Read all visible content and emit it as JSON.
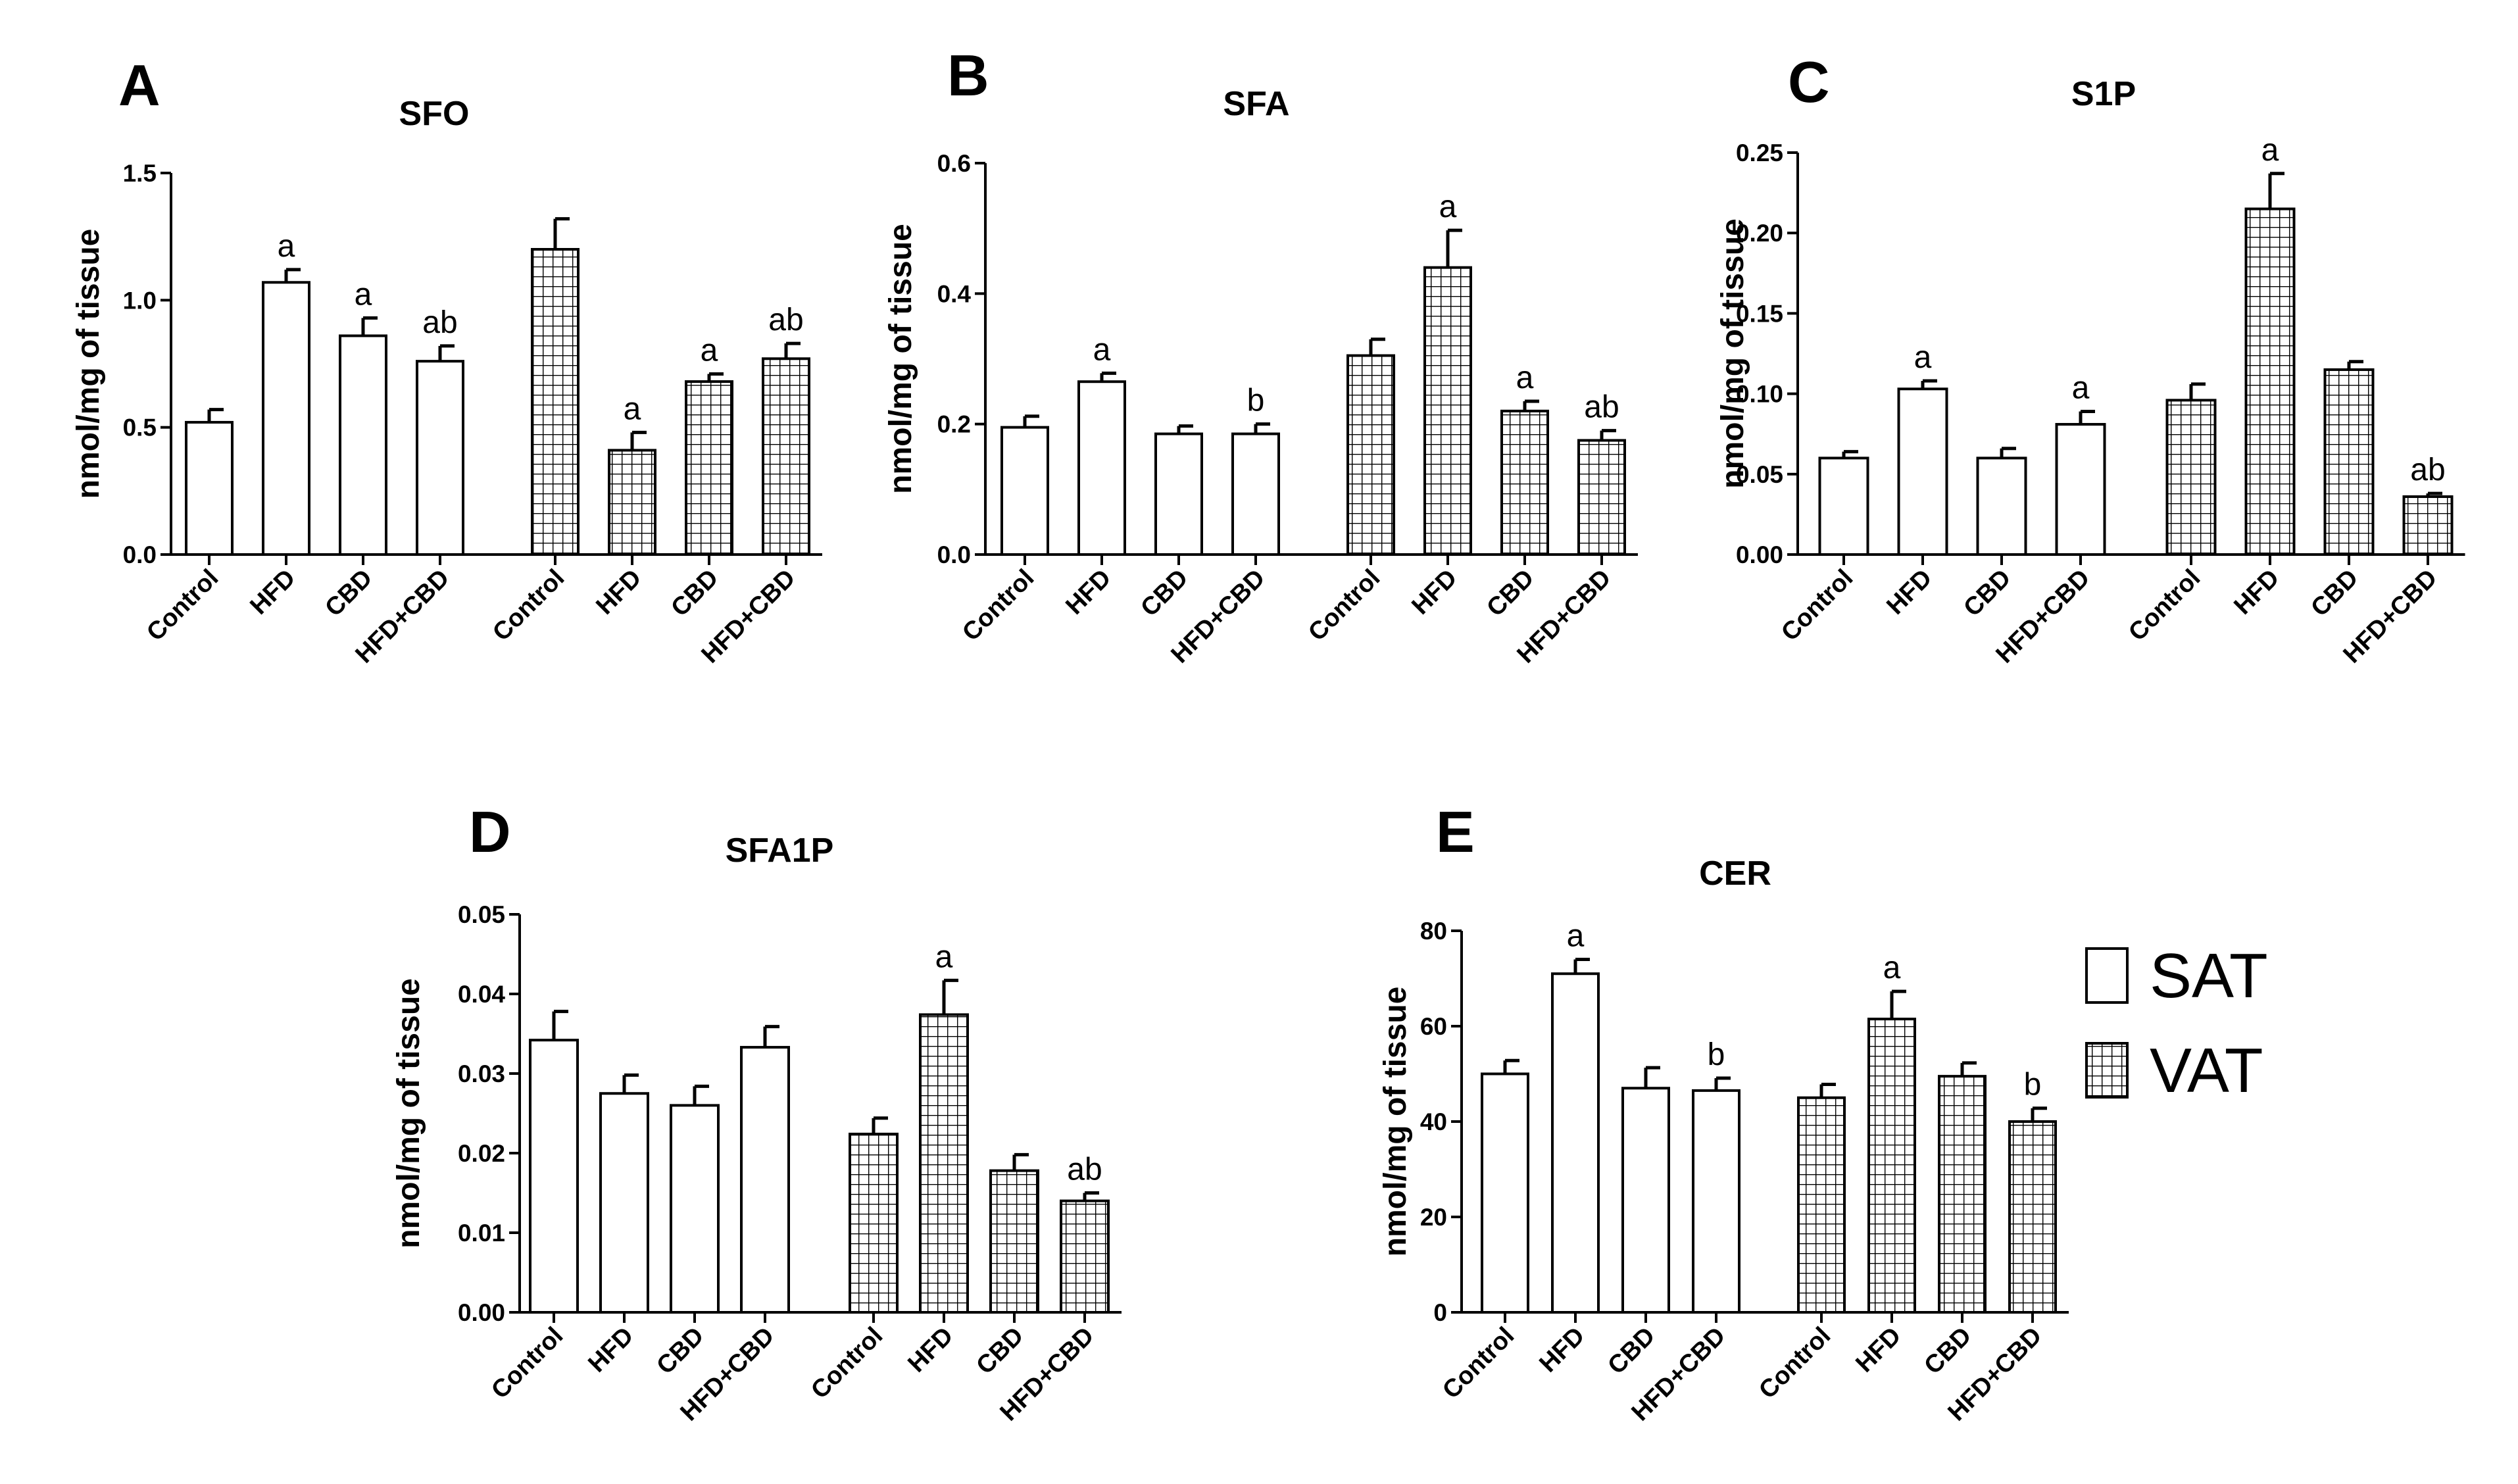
{
  "chart_data": [
    {
      "type": "bar",
      "panel": "A",
      "title": "SFO",
      "ylabel": "nmol/mg of tissue",
      "ylim": [
        0,
        1.5
      ],
      "yticks": [
        "0.0",
        "0.5",
        "1.0",
        "1.5"
      ],
      "categories": [
        "Control",
        "HFD",
        "CBD",
        "HFD+CBD"
      ],
      "series": [
        {
          "name": "SAT",
          "values": [
            0.52,
            1.07,
            0.86,
            0.76
          ],
          "errors": [
            0.05,
            0.05,
            0.07,
            0.06
          ],
          "labels": [
            "",
            "a",
            "a",
            "ab"
          ]
        },
        {
          "name": "VAT",
          "values": [
            1.2,
            0.41,
            0.68,
            0.77
          ],
          "errors": [
            0.12,
            0.07,
            0.03,
            0.06
          ],
          "labels": [
            "",
            "a",
            "a",
            "ab"
          ]
        }
      ]
    },
    {
      "type": "bar",
      "panel": "B",
      "title": "SFA",
      "ylabel": "nmol/mg of tissue",
      "ylim": [
        0,
        0.6
      ],
      "yticks": [
        "0.0",
        "0.2",
        "0.4",
        "0.6"
      ],
      "categories": [
        "Control",
        "HFD",
        "CBD",
        "HFD+CBD"
      ],
      "series": [
        {
          "name": "SAT",
          "values": [
            0.195,
            0.265,
            0.185,
            0.185
          ],
          "errors": [
            0.017,
            0.013,
            0.012,
            0.015
          ],
          "labels": [
            "",
            "a",
            "",
            "b"
          ]
        },
        {
          "name": "VAT",
          "values": [
            0.305,
            0.44,
            0.22,
            0.175
          ],
          "errors": [
            0.025,
            0.057,
            0.015,
            0.015
          ],
          "labels": [
            "",
            "a",
            "a",
            "ab"
          ]
        }
      ]
    },
    {
      "type": "bar",
      "panel": "C",
      "title": "S1P",
      "ylabel": "nmol/mg of tissue",
      "ylim": [
        0,
        0.25
      ],
      "yticks": [
        "0.00",
        "0.05",
        "0.10",
        "0.15",
        "0.20",
        "0.25"
      ],
      "categories": [
        "Control",
        "HFD",
        "CBD",
        "HFD+CBD"
      ],
      "series": [
        {
          "name": "SAT",
          "values": [
            0.06,
            0.103,
            0.06,
            0.081
          ],
          "errors": [
            0.004,
            0.005,
            0.006,
            0.008
          ],
          "labels": [
            "",
            "a",
            "",
            "a"
          ]
        },
        {
          "name": "VAT",
          "values": [
            0.096,
            0.215,
            0.115,
            0.036
          ],
          "errors": [
            0.01,
            0.022,
            0.005,
            0.002
          ],
          "labels": [
            "",
            "a",
            "",
            "ab"
          ]
        }
      ]
    },
    {
      "type": "bar",
      "panel": "D",
      "title": "SFA1P",
      "ylabel": "nmol/mg of tissue",
      "ylim": [
        0,
        0.05
      ],
      "yticks": [
        "0.00",
        "0.01",
        "0.02",
        "0.03",
        "0.04",
        "0.05"
      ],
      "categories": [
        "Control",
        "HFD",
        "CBD",
        "HFD+CBD"
      ],
      "series": [
        {
          "name": "SAT",
          "values": [
            0.0342,
            0.0275,
            0.026,
            0.0333
          ],
          "errors": [
            0.0036,
            0.0023,
            0.0024,
            0.0026
          ],
          "labels": [
            "",
            "",
            "",
            ""
          ]
        },
        {
          "name": "VAT",
          "values": [
            0.0224,
            0.0374,
            0.0178,
            0.014
          ],
          "errors": [
            0.002,
            0.0043,
            0.002,
            0.001
          ],
          "labels": [
            "",
            "a",
            "",
            "ab"
          ]
        }
      ]
    },
    {
      "type": "bar",
      "panel": "E",
      "title": "CER",
      "ylabel": "nmol/mg of tissue",
      "ylim": [
        0,
        80
      ],
      "yticks": [
        "0",
        "20",
        "40",
        "60",
        "80"
      ],
      "categories": [
        "Control",
        "HFD",
        "CBD",
        "HFD+CBD"
      ],
      "series": [
        {
          "name": "SAT",
          "values": [
            50,
            71,
            47,
            46.5
          ],
          "errors": [
            2.8,
            3.0,
            4.3,
            2.6
          ],
          "labels": [
            "",
            "a",
            "",
            "b"
          ]
        },
        {
          "name": "VAT",
          "values": [
            45,
            61.5,
            49.5,
            40
          ],
          "errors": [
            2.8,
            5.8,
            2.8,
            2.8
          ],
          "labels": [
            "",
            "a",
            "",
            "b"
          ]
        }
      ]
    }
  ],
  "legend": {
    "entries": [
      {
        "label": "SAT",
        "pattern": "open"
      },
      {
        "label": "VAT",
        "pattern": "grid"
      }
    ],
    "position": "right"
  }
}
